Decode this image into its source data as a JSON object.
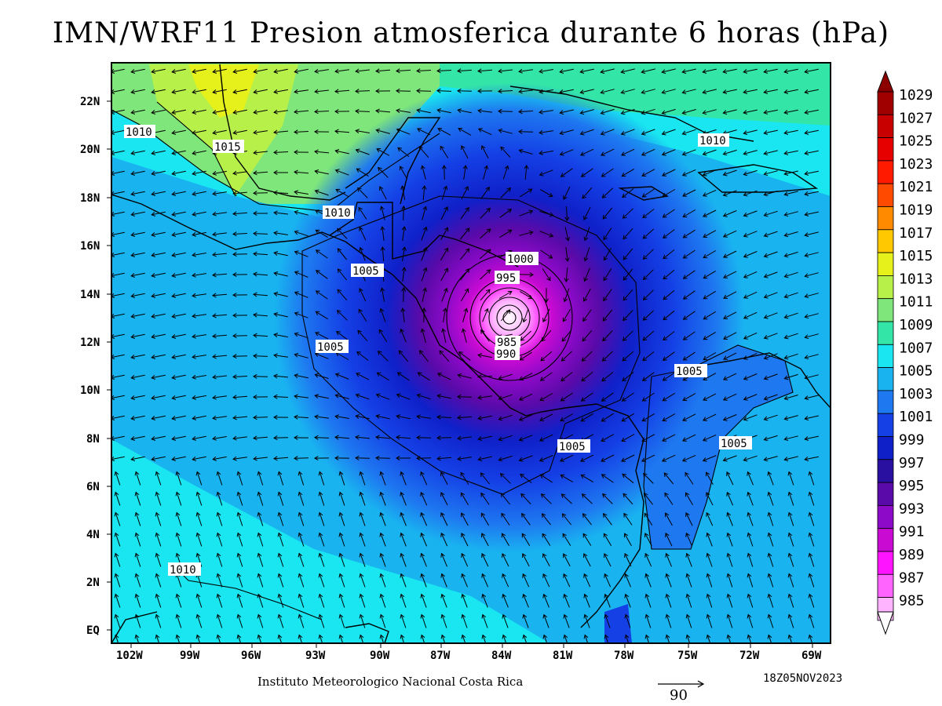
{
  "title": "IMN/WRF11 Presion atmosferica durante 6 horas (hPa)",
  "footer": {
    "institution": "Instituto Meteorologico Nacional Costa Rica",
    "timestamp": "18Z05NOV2023",
    "reference_vector_value": "90"
  },
  "axes": {
    "lon_labels": [
      "102W",
      "99W",
      "96W",
      "93W",
      "90W",
      "87W",
      "84W",
      "81W",
      "78W",
      "75W",
      "72W",
      "69W"
    ],
    "lat_labels": [
      "22N",
      "20N",
      "18N",
      "16N",
      "14N",
      "12N",
      "10N",
      "8N",
      "6N",
      "4N",
      "2N",
      "EQ"
    ]
  },
  "colorbar": {
    "levels": [
      "1029",
      "1027",
      "1025",
      "1023",
      "1021",
      "1019",
      "1017",
      "1015",
      "1013",
      "1011",
      "1009",
      "1007",
      "1005",
      "1003",
      "1001",
      "999",
      "997",
      "995",
      "993",
      "991",
      "989",
      "987",
      "985"
    ],
    "colors": [
      "#a00000",
      "#c80000",
      "#e60000",
      "#ff1a00",
      "#ff4a00",
      "#ff8a00",
      "#ffc800",
      "#e6f01a",
      "#b8f04a",
      "#7ee67a",
      "#33e6a8",
      "#19e6f0",
      "#19b4f0",
      "#1e78f0",
      "#1440e6",
      "#1020c8",
      "#2a10a0",
      "#5a0aa8",
      "#8c0ac8",
      "#c80ad2",
      "#ff14ff",
      "#ff64ff",
      "#ffb4ff"
    ],
    "top_arrow_color": "#8c0000",
    "bottom_arrow_color": "#ffffff"
  },
  "contour_labels": [
    {
      "text": "1010"
    },
    {
      "text": "1015"
    },
    {
      "text": "1010"
    },
    {
      "text": "1010"
    },
    {
      "text": "1000"
    },
    {
      "text": "995"
    },
    {
      "text": "1005"
    },
    {
      "text": "1005"
    },
    {
      "text": "985"
    },
    {
      "text": "990"
    },
    {
      "text": "1005"
    },
    {
      "text": "1005"
    },
    {
      "text": "1005"
    },
    {
      "text": "1010"
    }
  ],
  "storm_center": {
    "lon_label": "84W",
    "lat_label": "13N"
  }
}
